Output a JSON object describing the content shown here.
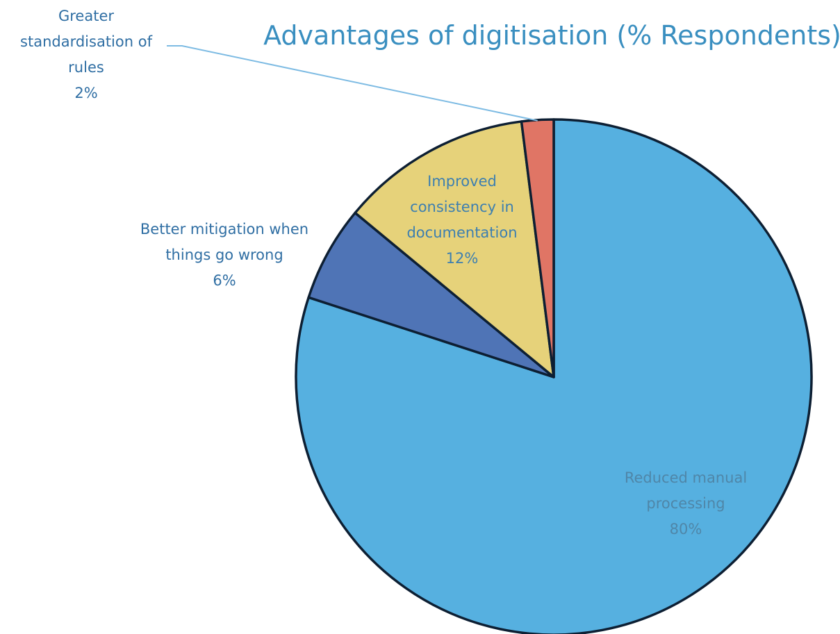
{
  "chart_data": {
    "type": "pie",
    "title": "Advantages of digitisation (% Respondents)",
    "unit": "%",
    "slices": [
      {
        "name": "Reduced manual processing",
        "label_lines": [
          "Reduced manual",
          "processing"
        ],
        "value": 80,
        "value_label": "80%",
        "color": "#56b0e0",
        "label_color": "#4f86a8"
      },
      {
        "name": "Better mitigation when things go wrong",
        "label_lines": [
          "Better mitigation when",
          "things go wrong"
        ],
        "value": 6,
        "value_label": "6%",
        "color": "#4f74b6",
        "label_color": "#2f6ea3"
      },
      {
        "name": "Improved consistency in documentation",
        "label_lines": [
          "Improved",
          "consistency in",
          "documentation"
        ],
        "value": 12,
        "value_label": "12%",
        "color": "#e6d27a",
        "label_color": "#3d7fb0"
      },
      {
        "name": "Greater standardisation of rules",
        "label_lines": [
          "Greater",
          "standardisation of",
          "rules"
        ],
        "value": 2,
        "value_label": "2%",
        "color": "#e07565",
        "label_color": "#2f6ea3"
      }
    ],
    "start_angle": "12 o'clock",
    "direction": "clockwise",
    "legend": "none",
    "title_color": "#3a8fc0",
    "outline_color": "#0d1f33"
  }
}
